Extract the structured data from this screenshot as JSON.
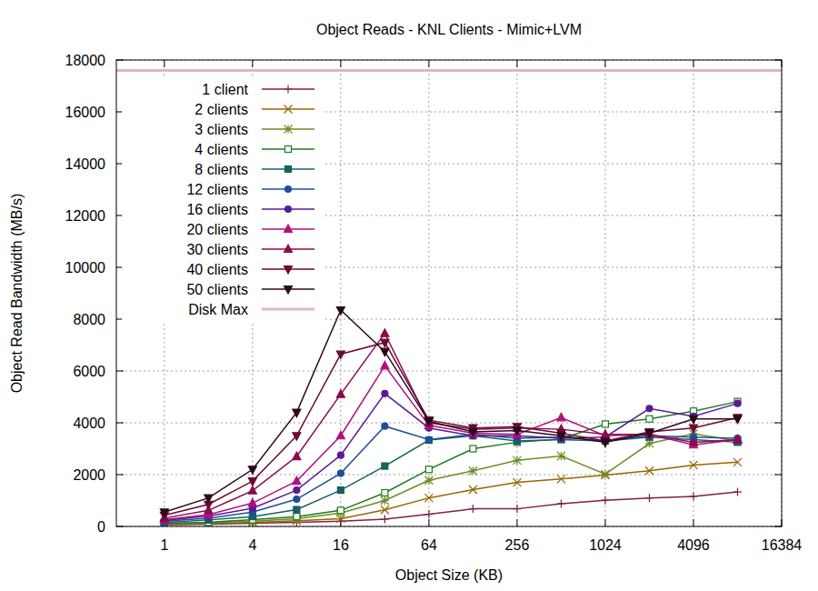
{
  "chart_data": {
    "type": "line",
    "title": "Object Reads - KNL Clients - Mimic+LVM",
    "x_label": "Object Size (KB)",
    "y_label": "Object Read Bandwidth (MB/s)",
    "log": "x",
    "grid": true,
    "legend": "top-left",
    "xlim": [
      0.47,
      16384
    ],
    "ylim": [
      0,
      18000
    ],
    "xticks": [
      1,
      4,
      16,
      64,
      256,
      1024,
      4096,
      16384
    ],
    "yticks": [
      0,
      2000,
      4000,
      6000,
      8000,
      10000,
      12000,
      14000,
      16000,
      18000
    ],
    "x": [
      1,
      2,
      4,
      8,
      16,
      32,
      64,
      128,
      256,
      512,
      1024,
      2048,
      4096,
      8192
    ],
    "series": [
      {
        "name": "1 client",
        "color": "#80204a",
        "marker": "plus",
        "values": [
          60,
          90,
          120,
          160,
          200,
          280,
          470,
          680,
          680,
          880,
          1010,
          1100,
          1160,
          1330
        ]
      },
      {
        "name": "2 clients",
        "color": "#996600",
        "marker": "cross",
        "values": [
          90,
          110,
          160,
          220,
          300,
          640,
          1100,
          1420,
          1700,
          1830,
          1980,
          2150,
          2370,
          2480
        ]
      },
      {
        "name": "3 clients",
        "color": "#6b8e23",
        "marker": "star",
        "values": [
          100,
          130,
          200,
          300,
          520,
          1000,
          1780,
          2150,
          2550,
          2720,
          2020,
          3200,
          3580,
          3300
        ]
      },
      {
        "name": "4 clients",
        "color": "#1e7b1e",
        "marker": "square-open",
        "values": [
          120,
          160,
          260,
          380,
          620,
          1300,
          2200,
          3000,
          3250,
          3380,
          3950,
          4150,
          4450,
          4820
        ]
      },
      {
        "name": "8 clients",
        "color": "#1a6060",
        "marker": "square",
        "values": [
          150,
          250,
          380,
          650,
          1400,
          2330,
          3330,
          3500,
          3300,
          3350,
          3300,
          3450,
          3350,
          3250
        ]
      },
      {
        "name": "12 clients",
        "color": "#1f4e9a",
        "marker": "circle",
        "values": [
          200,
          320,
          550,
          1050,
          2050,
          3870,
          3350,
          3550,
          3400,
          3450,
          3300,
          3500,
          3450,
          3400
        ]
      },
      {
        "name": "16 clients",
        "color": "#5a1a9a",
        "marker": "circle",
        "values": [
          230,
          400,
          700,
          1400,
          2750,
          5130,
          3800,
          3500,
          3500,
          3400,
          3450,
          4550,
          4250,
          4750
        ]
      },
      {
        "name": "20 clients",
        "color": "#b0107f",
        "marker": "triangle",
        "values": [
          260,
          460,
          900,
          1750,
          3500,
          6200,
          3900,
          3600,
          3550,
          4200,
          3500,
          3550,
          3150,
          3350
        ]
      },
      {
        "name": "30 clients",
        "color": "#8b0a50",
        "marker": "triangle",
        "values": [
          320,
          620,
          1380,
          2700,
          5100,
          7450,
          4000,
          3750,
          3800,
          3750,
          3550,
          3550,
          3250,
          3350
        ]
      },
      {
        "name": "40 clients",
        "color": "#6a0a30",
        "marker": "triangle-down",
        "values": [
          430,
          850,
          1750,
          3500,
          6650,
          7100,
          4100,
          3800,
          3850,
          3600,
          3300,
          3650,
          3800,
          4200
        ]
      },
      {
        "name": "50 clients",
        "color": "#2a0a1a",
        "marker": "triangle-down",
        "values": [
          550,
          1100,
          2200,
          4400,
          8350,
          6750,
          4050,
          3650,
          3700,
          3500,
          3250,
          3600,
          4150,
          4150
        ]
      }
    ],
    "hlines": [
      {
        "name": "Disk Max",
        "value": 17600,
        "color": "#e0b8b8"
      }
    ]
  }
}
